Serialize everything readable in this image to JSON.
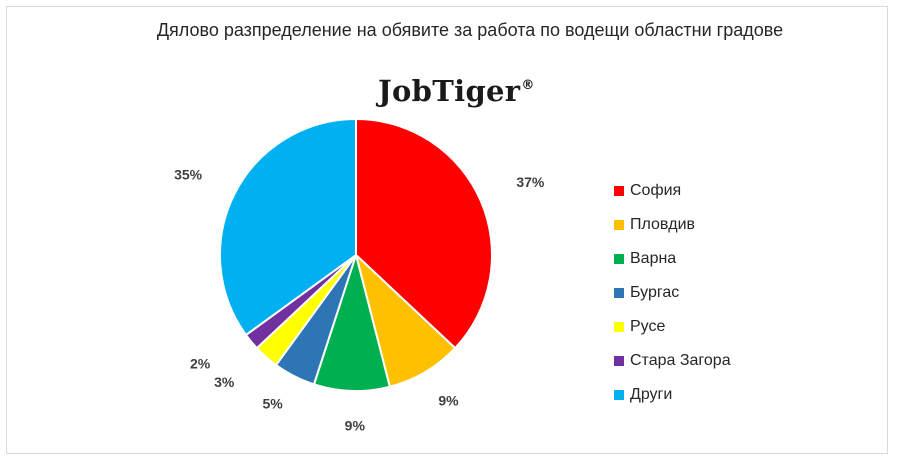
{
  "title": "Дялово разпределение на обявите за работа по водещи областни градове",
  "logo": {
    "text": "JobTiger",
    "mark": "®"
  },
  "chart_data": {
    "type": "pie",
    "categories": [
      "София",
      "Пловдив",
      "Варна",
      "Бургас",
      "Русе",
      "Стара Загора",
      "Други"
    ],
    "values": [
      37,
      9,
      9,
      5,
      3,
      2,
      35
    ],
    "labels": [
      "37%",
      "9%",
      "9%",
      "5%",
      "3%",
      "2%",
      "35%"
    ],
    "colors": [
      "#ff0000",
      "#ffc000",
      "#00b050",
      "#2e75b6",
      "#ffff00",
      "#7030a0",
      "#00b0f0"
    ],
    "legend_position": "right",
    "start_angle": "12 o'clock",
    "direction": "clockwise"
  }
}
